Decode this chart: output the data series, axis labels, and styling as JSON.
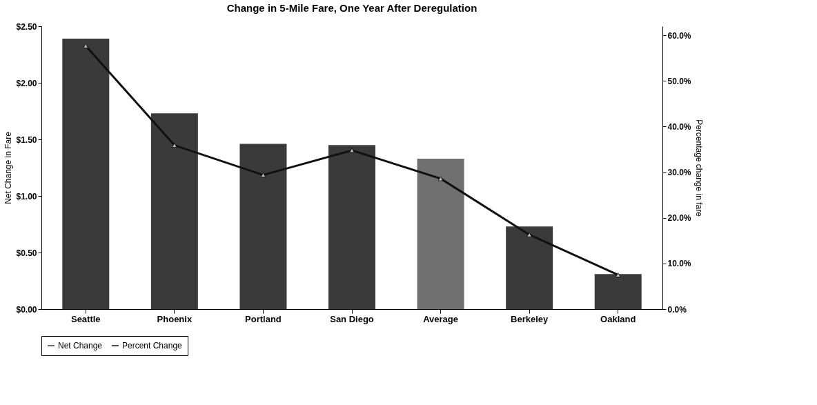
{
  "chart_data": {
    "type": "bar",
    "title": "Change in 5-Mile Fare, One Year After Deregulation",
    "ylabel": "Net Change in Fare",
    "y2label": "Percentage change in fare",
    "categories": [
      "Seattle",
      "Phoenix",
      "Portland",
      "San Diego",
      "Average",
      "Berkeley",
      "Oakland"
    ],
    "series": [
      {
        "name": "Net Change",
        "color": "#3a3a3a",
        "colors": [
          "#3a3a3a",
          "#3a3a3a",
          "#3a3a3a",
          "#3a3a3a",
          "#707070",
          "#3a3a3a",
          "#3a3a3a"
        ],
        "values": [
          2.39,
          1.73,
          1.46,
          1.45,
          1.33,
          0.73,
          0.31
        ]
      },
      {
        "name": "Percent Change",
        "type": "line",
        "axis": "y2",
        "color": "#111111",
        "marker": "triangle",
        "values": [
          57.7,
          35.9,
          29.4,
          34.8,
          28.6,
          16.3,
          7.5
        ]
      }
    ],
    "ylim": [
      0,
      2.5
    ],
    "yticks": [
      {
        "value": 0,
        "label": "$0.00"
      },
      {
        "value": 0.5,
        "label": "$0.50"
      },
      {
        "value": 1,
        "label": "$1.00"
      },
      {
        "value": 1.5,
        "label": "$1.50"
      },
      {
        "value": 2,
        "label": "$2.00"
      },
      {
        "value": 2.5,
        "label": "$2.50"
      }
    ],
    "y2lim": [
      0,
      62
    ],
    "y2ticks": [
      {
        "value": 0,
        "label": "0.0%"
      },
      {
        "value": 10,
        "label": "10.0%"
      },
      {
        "value": 20,
        "label": "20.0%"
      },
      {
        "value": 30,
        "label": "30.0%"
      },
      {
        "value": 40,
        "label": "40.0%"
      },
      {
        "value": 50,
        "label": "50.0%"
      },
      {
        "value": 60,
        "label": "60.0%"
      }
    ],
    "grid": false,
    "legend": "bottom"
  }
}
